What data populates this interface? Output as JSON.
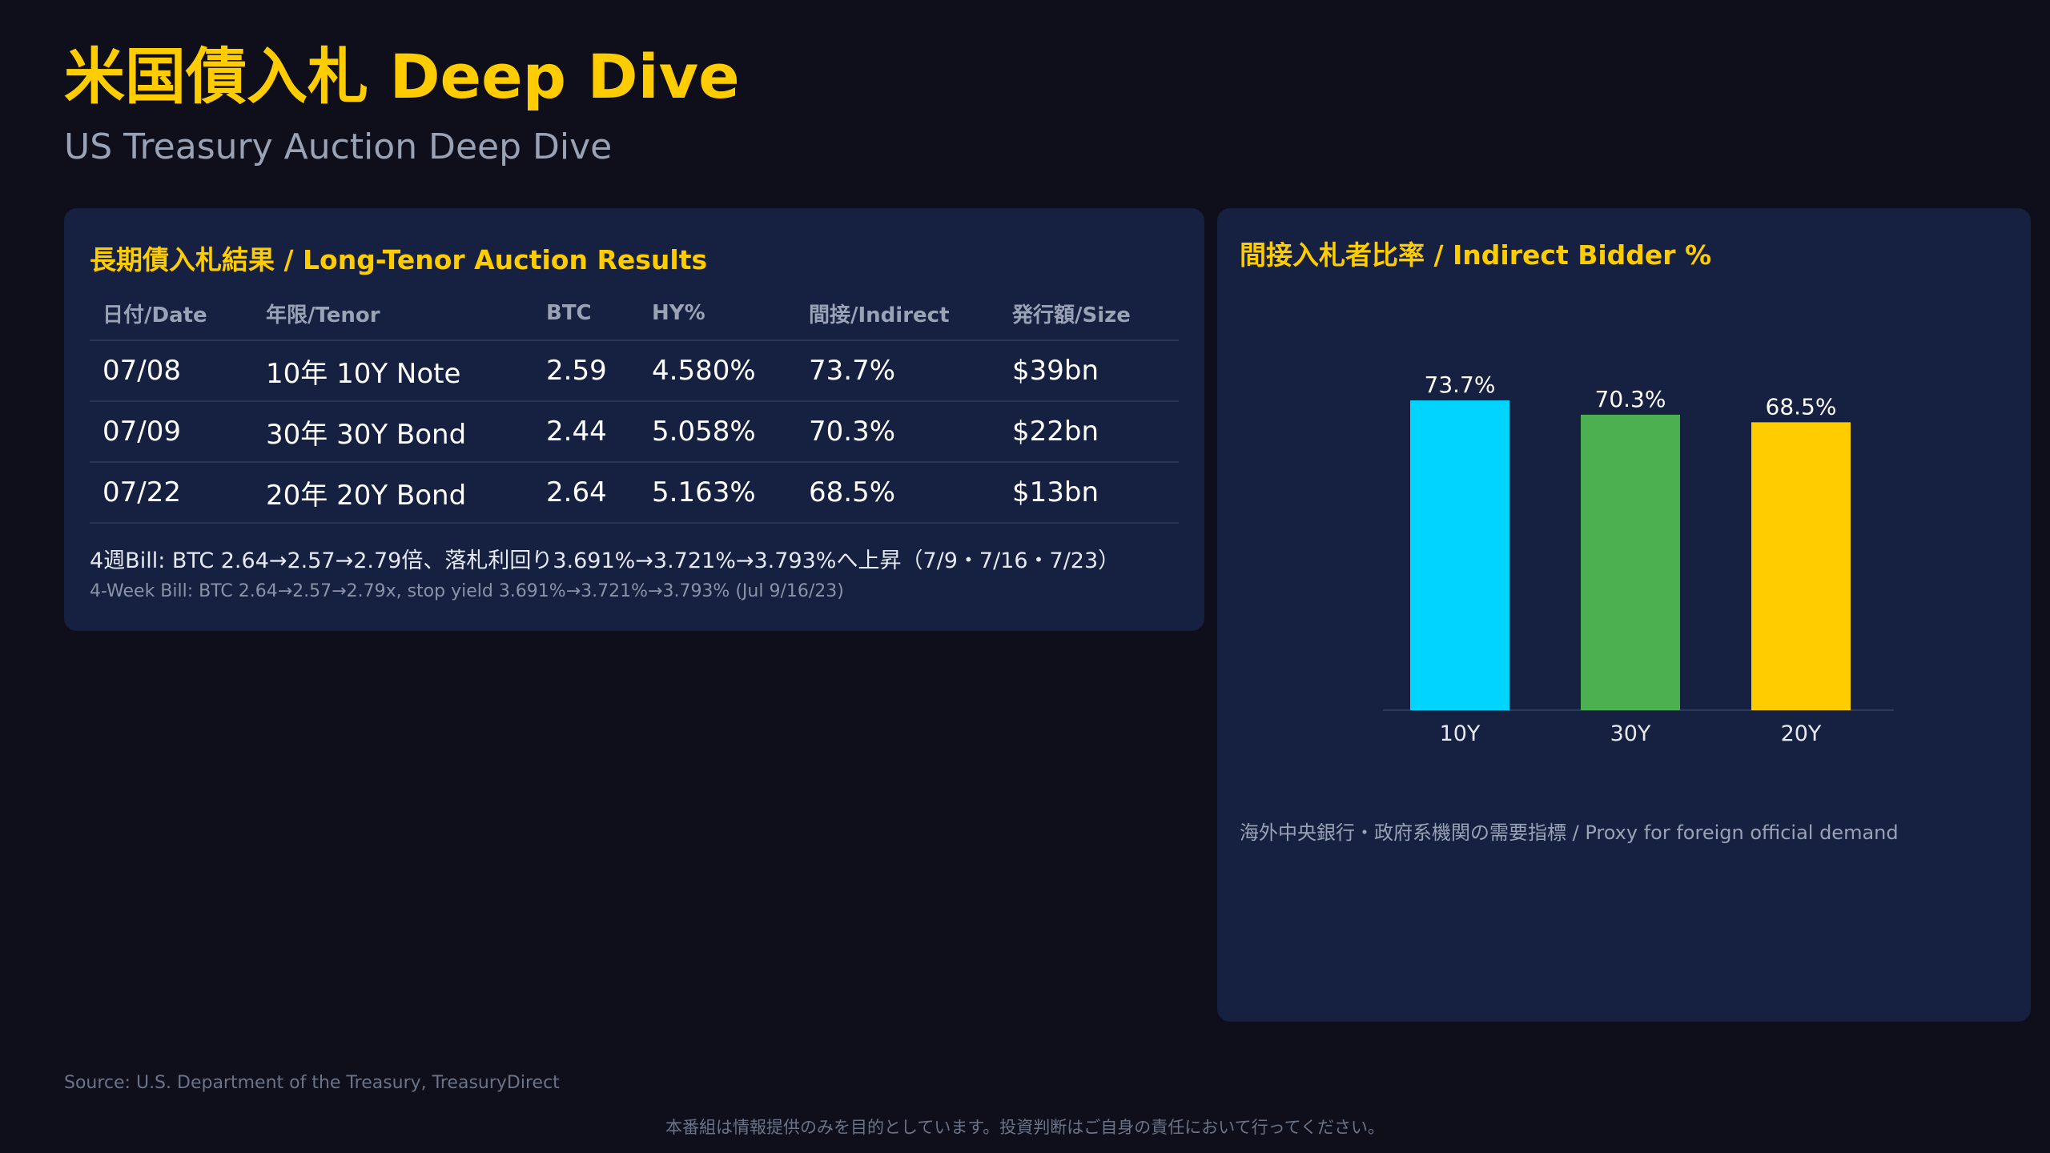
{
  "header": {
    "title": "米国債入札 Deep Dive",
    "subtitle": "US Treasury Auction Deep Dive"
  },
  "results": {
    "title": "長期債入札結果 / Long-Tenor Auction Results",
    "columns": [
      "日付/Date",
      "年限/Tenor",
      "BTC",
      "HY%",
      "間接/Indirect",
      "発行額/Size"
    ],
    "rows": [
      [
        "07/08",
        "10年 10Y Note",
        "2.59",
        "4.580%",
        "73.7%",
        "$39bn"
      ],
      [
        "07/09",
        "30年 30Y Bond",
        "2.44",
        "5.058%",
        "70.3%",
        "$22bn"
      ],
      [
        "07/22",
        "20年 20Y Bond",
        "2.64",
        "5.163%",
        "68.5%",
        "$13bn"
      ]
    ],
    "note_ja": "4週Bill: BTC 2.64→2.57→2.79倍、落札利回り3.691%→3.721%→3.793%へ上昇（7/9・7/16・7/23）",
    "note_en": "4-Week Bill: BTC 2.64→2.57→2.79x, stop yield 3.691%→3.721%→3.793% (Jul 9/16/23)"
  },
  "chart_panel": {
    "title": "間接入札者比率 / Indirect Bidder %",
    "caption": "海外中央銀行・政府系機関の需要指標 / Proxy for foreign official demand"
  },
  "chart_data": {
    "type": "bar",
    "title": "間接入札者比率 / Indirect Bidder %",
    "categories": [
      "10Y",
      "30Y",
      "20Y"
    ],
    "values": [
      73.7,
      70.3,
      68.5
    ],
    "value_labels": [
      "73.7%",
      "70.3%",
      "68.5%"
    ],
    "colors": [
      "#00d4ff",
      "#4caf50",
      "#ffcc00"
    ],
    "ylim": [
      0,
      80
    ],
    "grid": false,
    "legend": "none"
  },
  "footer": {
    "source": "Source: U.S. Department of the Treasury, TreasuryDirect",
    "disclaimer": "本番組は情報提供のみを目的としています。投資判断はご自身の責任において行ってください。"
  }
}
